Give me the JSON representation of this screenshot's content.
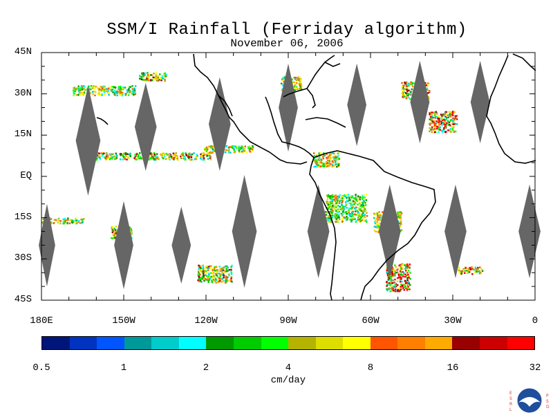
{
  "title": "SSM/I Rainfall (Ferriday algorithm)",
  "subtitle": "November 06, 2006",
  "lat_labels": [
    "45N",
    "30N",
    "15N",
    "EQ",
    "15S",
    "30S",
    "45S"
  ],
  "lat_values": [
    45,
    30,
    15,
    0,
    -15,
    -30,
    -45
  ],
  "lon_labels": [
    "180E",
    "150W",
    "120W",
    "90W",
    "60W",
    "30W",
    "0"
  ],
  "lon_values": [
    -180,
    -150,
    -120,
    -90,
    -60,
    -30,
    0
  ],
  "colorbar": {
    "colors": [
      "#00157a",
      "#0033c0",
      "#0055ff",
      "#00999a",
      "#00cccc",
      "#00ffff",
      "#009900",
      "#00cc00",
      "#00ff00",
      "#b3b300",
      "#dddd00",
      "#ffff00",
      "#ff5500",
      "#ff7f00",
      "#ffaa00",
      "#990000",
      "#cc0000",
      "#ff0000"
    ],
    "tick_labels": [
      "0.5",
      "1",
      "2",
      "4",
      "8",
      "16",
      "32"
    ],
    "units": "cm/day"
  },
  "logo": {
    "left_letters": "ESRL",
    "right_letters": "PSD",
    "center": "NOAA"
  },
  "map_extent": {
    "lon_min": -180,
    "lon_max": 0,
    "lat_min": -45,
    "lat_max": 45
  },
  "swath_gaps": [
    {
      "lon": -163,
      "lat": 13,
      "width_deg": 9,
      "height_deg": 40
    },
    {
      "lon": -142,
      "lat": 18,
      "width_deg": 8,
      "height_deg": 32
    },
    {
      "lon": -115,
      "lat": 19,
      "width_deg": 8,
      "height_deg": 34
    },
    {
      "lon": -90,
      "lat": 25,
      "width_deg": 7,
      "height_deg": 32
    },
    {
      "lon": -65,
      "lat": 26,
      "width_deg": 7,
      "height_deg": 30
    },
    {
      "lon": -42,
      "lat": 27,
      "width_deg": 7,
      "height_deg": 30
    },
    {
      "lon": -20,
      "lat": 27,
      "width_deg": 7,
      "height_deg": 30
    },
    {
      "lon": -178,
      "lat": -25,
      "width_deg": 6,
      "height_deg": 30
    },
    {
      "lon": -150,
      "lat": -25,
      "width_deg": 7,
      "height_deg": 32
    },
    {
      "lon": -129,
      "lat": -25,
      "width_deg": 7,
      "height_deg": 28
    },
    {
      "lon": -106,
      "lat": -20,
      "width_deg": 9,
      "height_deg": 41
    },
    {
      "lon": -79,
      "lat": -20,
      "width_deg": 8,
      "height_deg": 34
    },
    {
      "lon": -53,
      "lat": -20,
      "width_deg": 8,
      "height_deg": 34
    },
    {
      "lon": -29,
      "lat": -20,
      "width_deg": 8,
      "height_deg": 34
    },
    {
      "lon": -2,
      "lat": -20,
      "width_deg": 8,
      "height_deg": 34
    }
  ]
}
